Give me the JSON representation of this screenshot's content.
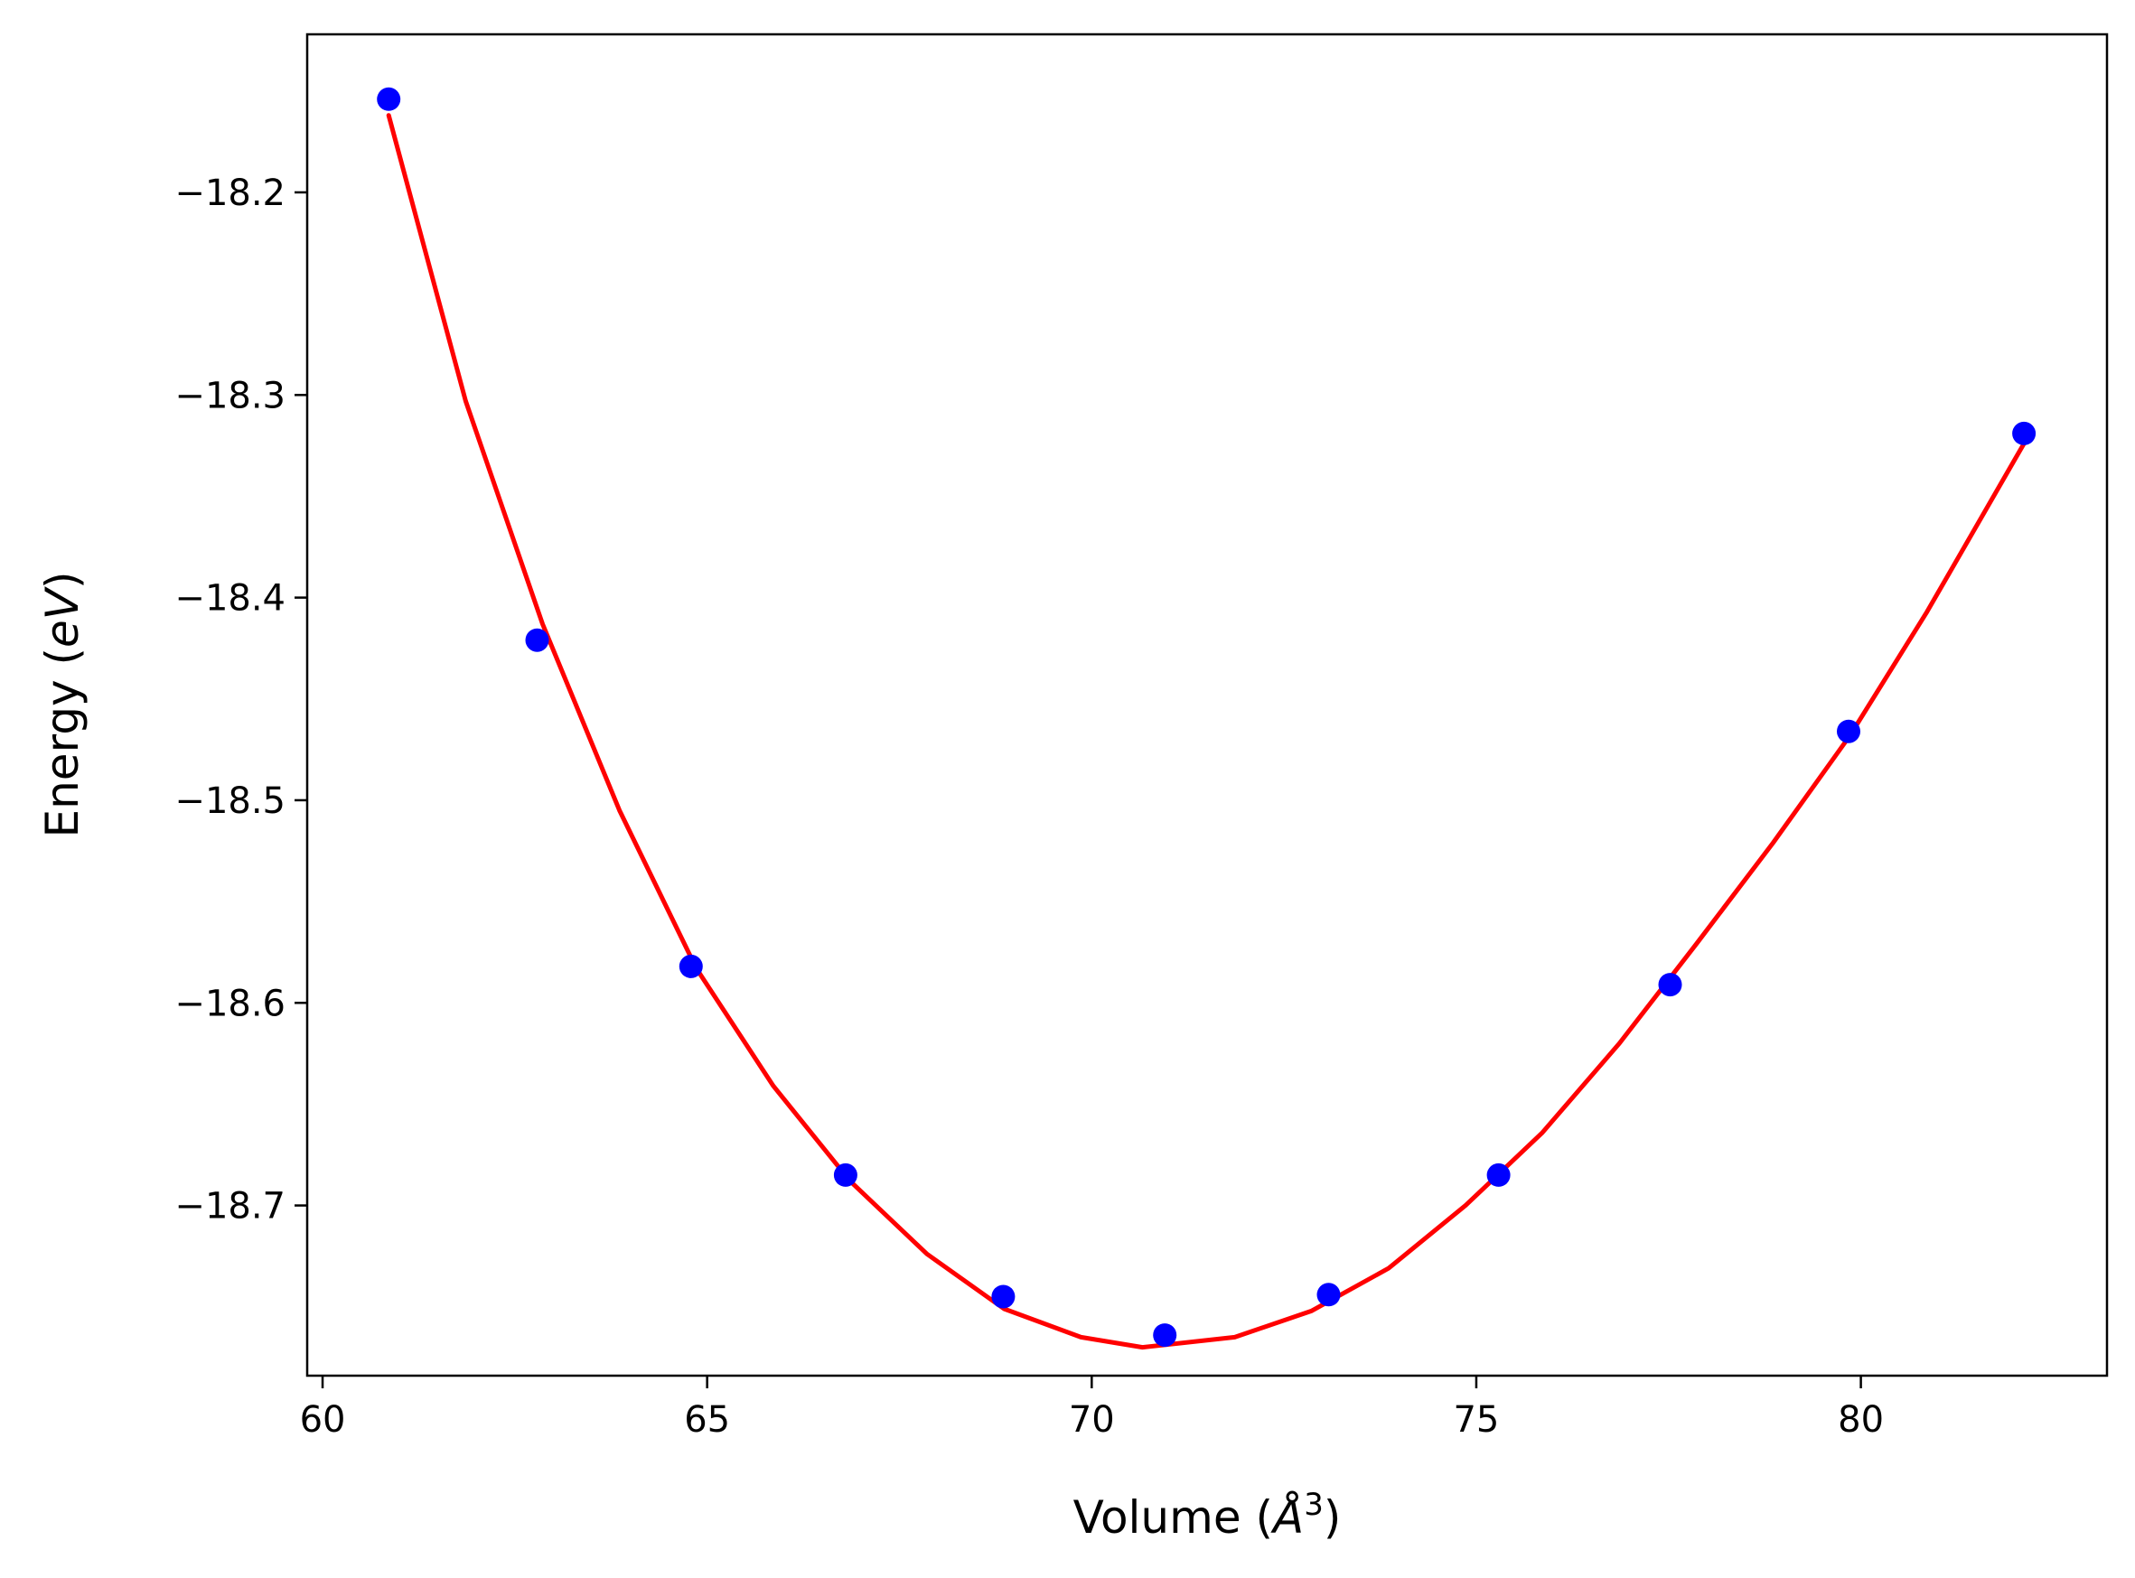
{
  "chart_data": {
    "type": "scatter",
    "title": "",
    "xlabel": {
      "text": "Volume (",
      "symbol": "Å",
      "superscript": "3",
      "suffix": ")"
    },
    "ylabel": {
      "text": "Energy (",
      "italic": "eV",
      "suffix": ")"
    },
    "xlim": [
      59.8,
      83.2
    ],
    "ylim": [
      -18.784,
      -18.122
    ],
    "xticks": [
      60,
      65,
      70,
      75,
      80
    ],
    "xtick_labels": [
      "60",
      "65",
      "70",
      "75",
      "80"
    ],
    "yticks": [
      -18.2,
      -18.3,
      -18.4,
      -18.5,
      -18.6,
      -18.7
    ],
    "ytick_labels": [
      "−18.2",
      "−18.3",
      "−18.4",
      "−18.5",
      "−18.6",
      "−18.7"
    ],
    "grid": false,
    "legend": "none",
    "series": [
      {
        "kind": "points",
        "color": "#0000ff",
        "x": [
          60.86,
          62.79,
          64.79,
          66.8,
          68.85,
          70.95,
          73.08,
          75.29,
          77.52,
          79.84,
          82.12
        ],
        "y": [
          -18.154,
          -18.421,
          -18.582,
          -18.685,
          -18.745,
          -18.764,
          -18.744,
          -18.685,
          -18.591,
          -18.466,
          -18.319
        ]
      },
      {
        "kind": "fit-curve",
        "color": "#ff0000",
        "x": [
          60.86,
          61.86,
          62.86,
          63.86,
          64.86,
          65.86,
          66.86,
          67.86,
          68.86,
          69.86,
          70.66,
          71.86,
          72.86,
          73.86,
          74.86,
          75.86,
          76.86,
          77.86,
          78.86,
          79.86,
          80.86,
          82.12
        ],
        "y": [
          -18.162,
          -18.303,
          -18.413,
          -18.505,
          -18.583,
          -18.641,
          -18.688,
          -18.724,
          -18.751,
          -18.765,
          -18.77,
          -18.765,
          -18.752,
          -18.731,
          -18.7,
          -18.664,
          -18.62,
          -18.571,
          -18.521,
          -18.468,
          -18.407,
          -18.324
        ]
      }
    ]
  }
}
